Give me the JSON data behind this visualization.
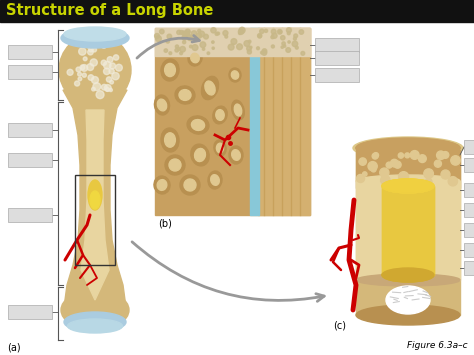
{
  "title": "Structure of a Long Bone",
  "title_color": "#c8d400",
  "title_bg": "#111111",
  "fig_label": "Figure 6.3a–c",
  "background_color": "#ffffff",
  "label_a": "(a)",
  "label_b": "(b)",
  "label_c": "(c)",
  "bone_color": "#d4b87a",
  "bone_dark": "#c4a060",
  "bone_inner": "#e8d5a0",
  "bone_marrow_yellow": "#e8c840",
  "bone_cartilage": "#aacce0",
  "bone_white": "#f0ead8",
  "spongy_color": "#c8a060",
  "compact_color": "#d4b070",
  "blood_red": "#cc0000",
  "label_box_color": "#cccccc",
  "arrow_color": "#999999",
  "line_color": "#444444"
}
